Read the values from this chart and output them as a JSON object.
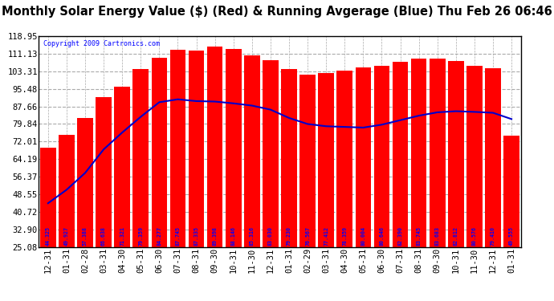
{
  "title": "Monthly Solar Energy Value ($) (Red) & Running Avgerage (Blue) Thu Feb 26 06:46",
  "copyright": "Copyright 2009 Cartronics.com",
  "categories": [
    "12-31",
    "01-31",
    "02-28",
    "03-31",
    "04-30",
    "05-31",
    "06-30",
    "07-31",
    "08-31",
    "09-30",
    "10-31",
    "11-30",
    "12-31",
    "01-31",
    "02-29",
    "03-31",
    "04-30",
    "05-31",
    "06-30",
    "07-31",
    "08-31",
    "09-30",
    "10-31",
    "11-30",
    "12-31",
    "01-31"
  ],
  "bar_values": [
    44.325,
    49.927,
    57.388,
    66.638,
    71.321,
    79.359,
    84.277,
    87.745,
    87.335,
    89.398,
    88.146,
    85.316,
    83.03,
    79.23,
    76.567,
    77.412,
    78.359,
    80.004,
    80.646,
    82.39,
    83.745,
    83.683,
    82.812,
    80.576,
    79.41,
    49.555
  ],
  "avg_values_x": [
    0,
    1,
    2,
    3,
    4,
    5,
    6,
    7,
    8,
    9,
    10,
    11,
    12,
    13,
    14,
    15,
    16,
    17,
    18,
    19,
    20,
    21,
    22,
    23,
    24,
    25
  ],
  "avg_values_y": [
    44.5,
    50.5,
    58.0,
    68.5,
    76.0,
    83.0,
    89.5,
    90.8,
    90.0,
    89.8,
    89.0,
    88.0,
    86.2,
    82.5,
    79.8,
    78.8,
    78.5,
    78.2,
    79.5,
    81.5,
    83.5,
    85.0,
    85.5,
    85.2,
    84.8,
    82.0
  ],
  "ylim": [
    25.08,
    118.95
  ],
  "yticks": [
    25.08,
    32.9,
    40.72,
    48.55,
    56.37,
    64.19,
    72.01,
    79.84,
    87.66,
    95.48,
    103.31,
    111.13,
    118.95
  ],
  "bar_color": "#ff0000",
  "line_color": "#0000cc",
  "bg_color": "#ffffff",
  "plot_bg_color": "#ffffff",
  "grid_color": "#aaaaaa",
  "label_color_blue": "#0000ff",
  "title_color": "#000000",
  "copyright_color": "#0000ff",
  "title_fontsize": 10.5,
  "tick_fontsize": 7.5,
  "label_fontsize": 5.5
}
